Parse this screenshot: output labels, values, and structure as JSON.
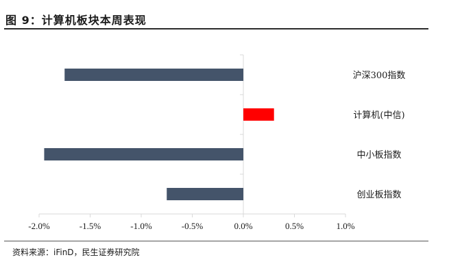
{
  "figure": {
    "title": "图 9：计算机板块本周表现",
    "source": "资料来源：iFinD，民生证券研究院"
  },
  "chart_data": {
    "type": "bar",
    "orientation": "horizontal",
    "title": "",
    "xlabel": "",
    "ylabel": "",
    "categories": [
      "沪深300指数",
      "计算机(中信)",
      "中小板指数",
      "创业板指数"
    ],
    "values": [
      -1.75,
      0.3,
      -1.95,
      -0.75
    ],
    "value_unit": "%",
    "colors": [
      "#44546a",
      "#ff0000",
      "#44546a",
      "#44546a"
    ],
    "xlim": [
      -2.0,
      1.0
    ],
    "xticks": [
      -2.0,
      -1.5,
      -1.0,
      -0.5,
      0.0,
      0.5,
      1.0
    ],
    "xtick_labels": [
      "-2.0%",
      "-1.5%",
      "-1.0%",
      "-0.5%",
      "0.0%",
      "0.5%",
      "1.0%"
    ],
    "grid": false,
    "legend": "none",
    "axis_color": "#d9d9d9"
  }
}
